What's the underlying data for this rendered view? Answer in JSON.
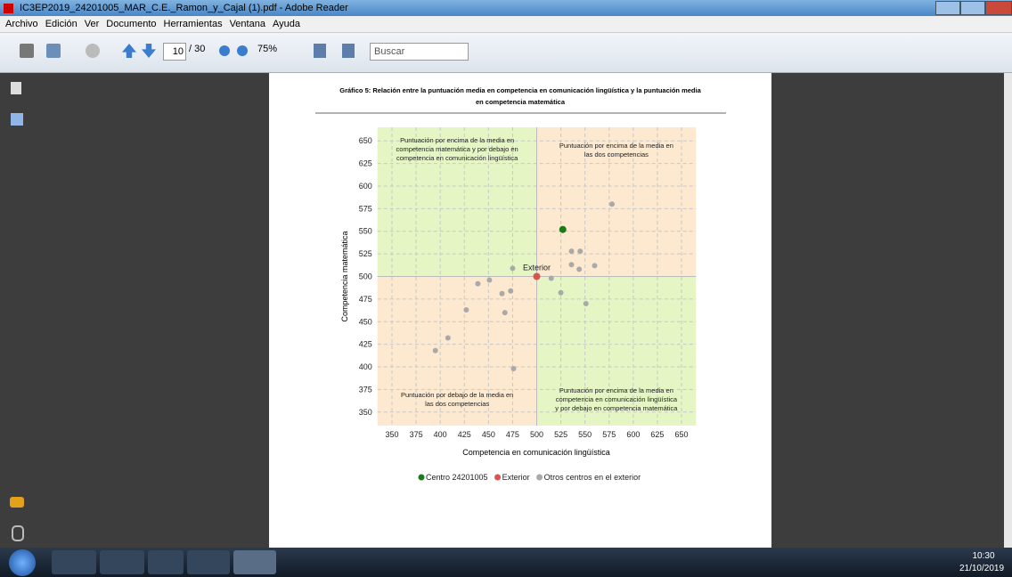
{
  "window": {
    "title": "IC3EP2019_24201005_MAR_C.E._Ramon_y_Cajal (1).pdf - Adobe Reader"
  },
  "menu": [
    "Archivo",
    "Edición",
    "Ver",
    "Documento",
    "Herramientas",
    "Ventana",
    "Ayuda"
  ],
  "toolbar": {
    "page": "10",
    "page_total": "/ 30",
    "zoom": "75%",
    "search": "Buscar"
  },
  "taskbar": {
    "time": "10:30",
    "date": "21/10/2019"
  },
  "chart_data": {
    "type": "scatter",
    "title": [
      "Gráfico 5: Relación entre la puntuación media en competencia en comunicación lingüística y la puntuación media",
      "en competencia matemática"
    ],
    "x_label": "Competencia en comunicación lingüística",
    "y_label": "Competencia matemática",
    "xlim": [
      335,
      665
    ],
    "ylim": [
      335,
      665
    ],
    "xticks": [
      350,
      375,
      400,
      425,
      450,
      475,
      500,
      525,
      550,
      575,
      600,
      625,
      650
    ],
    "yticks": [
      350,
      375,
      400,
      425,
      450,
      475,
      500,
      525,
      550,
      575,
      600,
      625,
      650
    ],
    "grid": true,
    "quadrant_split": [
      500,
      500
    ],
    "quadrant_colors": {
      "above_left": "#e5f6c4",
      "above_right": "#fde9cf",
      "below_left": "#fde9cf",
      "below_right": "#e5f6c4"
    },
    "quadrant_labels": {
      "above_left": [
        "Puntuación por encima de la media en",
        "competencia matemática y por debajo en",
        "competencia en comunicación lingüística"
      ],
      "above_right": [
        "Puntuación por encima de la media en",
        "las dos competencias"
      ],
      "below_left": [
        "Puntuación por debajo de la media en",
        "las dos competencias"
      ],
      "below_right": [
        "Puntuación por encima de la media en",
        "competencia en comunicación lingüística",
        "y por debajo en competencia matemática"
      ]
    },
    "series": [
      {
        "name": "Centro 24201005",
        "color": "#1a7a1a",
        "x": [
          527
        ],
        "y": [
          552
        ]
      },
      {
        "name": "Exterior",
        "color": "#d9534f",
        "x": [
          500
        ],
        "y": [
          500
        ],
        "point_labels": [
          "Exterior"
        ]
      },
      {
        "name": "Otros centros en el exterior",
        "color": "#a9a9a9",
        "x": [
          395,
          408,
          427,
          439,
          451,
          464,
          473,
          467,
          475,
          476,
          515,
          525,
          536,
          545,
          536,
          544,
          560,
          551,
          578
        ],
        "y": [
          418,
          432,
          463,
          492,
          496,
          481,
          484,
          460,
          509,
          398,
          498,
          482,
          528,
          528,
          513,
          508,
          512,
          470,
          580
        ]
      }
    ]
  }
}
